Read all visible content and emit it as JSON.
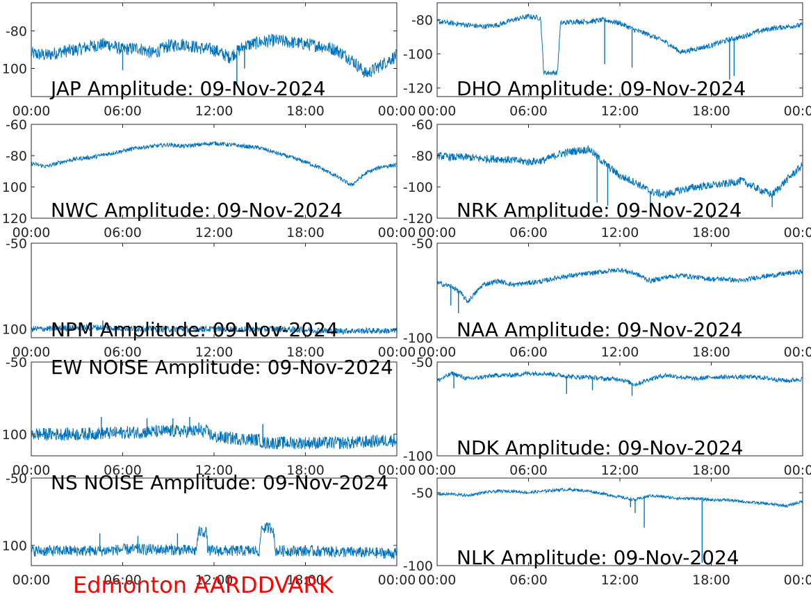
{
  "figure": {
    "footer": "Edmonton AARDDVARK",
    "footer_color": "#ff0000",
    "line_color": "#0072bd"
  },
  "chart_data": [
    {
      "type": "line",
      "title": "JAP Amplitude: 09-Nov-2024",
      "x_ticks": [
        "00:00",
        "06:00",
        "12:00",
        "18:00",
        "00:00"
      ],
      "xlim_hours": [
        0,
        24
      ],
      "y_ticks": [
        -80,
        -100
      ],
      "y_tick_labels": [
        "-80",
        "100"
      ],
      "ylim": [
        -115,
        -65
      ],
      "x": [
        0,
        1,
        2,
        3,
        4,
        5,
        6,
        7,
        8,
        9,
        10,
        11,
        12,
        13,
        14,
        15,
        16,
        17,
        18,
        19,
        20,
        21,
        22,
        23,
        24
      ],
      "values": [
        -92,
        -93,
        -91,
        -90,
        -88,
        -87,
        -90,
        -89,
        -92,
        -88,
        -87,
        -89,
        -90,
        -94,
        -88,
        -86,
        -85,
        -86,
        -87,
        -88,
        -90,
        -95,
        -103,
        -98,
        -93
      ],
      "noise": 3.5,
      "glitches": [
        [
          6.0,
          -101
        ],
        [
          13.0,
          -97
        ],
        [
          13.5,
          -108
        ],
        [
          14.0,
          -100
        ]
      ]
    },
    {
      "type": "line",
      "title": "DHO Amplitude: 09-Nov-2024",
      "x_ticks": [
        "00:00",
        "06:00",
        "12:00",
        "18:00",
        "00:00"
      ],
      "xlim_hours": [
        0,
        24
      ],
      "y_ticks": [
        -80,
        -100,
        -120
      ],
      "y_tick_labels": [
        "-80",
        "-100",
        "-120"
      ],
      "ylim": [
        -125,
        -70
      ],
      "x": [
        0,
        1,
        2,
        3,
        4,
        5,
        6,
        6.8,
        7.0,
        7.9,
        8.1,
        9,
        10,
        11,
        12,
        13,
        14,
        15,
        16,
        17,
        18,
        19,
        20,
        21,
        22,
        23,
        24
      ],
      "values": [
        -81,
        -82,
        -83,
        -84,
        -83,
        -80,
        -78,
        -79,
        -111,
        -111,
        -82,
        -81,
        -81,
        -80,
        -82,
        -86,
        -89,
        -93,
        -99,
        -97,
        -95,
        -92,
        -90,
        -87,
        -85,
        -84,
        -83
      ],
      "noise": 1.5,
      "glitches": [
        [
          11.0,
          -106
        ],
        [
          12.8,
          -108
        ],
        [
          19.2,
          -115
        ],
        [
          19.5,
          -113
        ]
      ]
    },
    {
      "type": "line",
      "title": "NWC Amplitude: 09-Nov-2024",
      "x_ticks": [
        "00:00",
        "06:00",
        "12:00",
        "18:00",
        "00:00"
      ],
      "xlim_hours": [
        0,
        24
      ],
      "y_ticks": [
        -60,
        -80,
        -100,
        -120
      ],
      "y_tick_labels": [
        "-60",
        "-80",
        "100",
        "120"
      ],
      "ylim": [
        -120,
        -60
      ],
      "x": [
        0,
        1,
        2,
        3,
        4,
        5,
        6,
        7,
        8,
        9,
        10,
        11,
        12,
        13,
        14,
        15,
        16,
        17,
        18,
        19,
        20,
        21,
        22,
        23,
        24
      ],
      "values": [
        -85,
        -87,
        -84,
        -82,
        -81,
        -79,
        -77,
        -75,
        -74,
        -73,
        -74,
        -73,
        -72,
        -73,
        -74,
        -75,
        -78,
        -81,
        -84,
        -88,
        -93,
        -99,
        -91,
        -87,
        -86
      ],
      "noise": 1.3,
      "glitches": []
    },
    {
      "type": "line",
      "title": "NRK Amplitude: 09-Nov-2024",
      "x_ticks": [
        "00:00",
        "06:00",
        "12:00",
        "18:00",
        "00:00"
      ],
      "xlim_hours": [
        0,
        24
      ],
      "y_ticks": [
        -60,
        -80,
        -100,
        -120
      ],
      "y_tick_labels": [
        "-60",
        "-80",
        "-100",
        "-120"
      ],
      "ylim": [
        -120,
        -60
      ],
      "x": [
        0,
        1,
        2,
        3,
        4,
        5,
        6,
        7,
        8,
        9,
        10,
        11,
        12,
        13,
        14,
        15,
        16,
        17,
        18,
        19,
        20,
        21,
        22,
        23,
        24
      ],
      "values": [
        -80,
        -81,
        -81,
        -82,
        -82,
        -83,
        -84,
        -83,
        -79,
        -77,
        -76,
        -85,
        -93,
        -97,
        -103,
        -105,
        -102,
        -100,
        -99,
        -98,
        -96,
        -101,
        -105,
        -95,
        -86
      ],
      "noise": 2.5,
      "glitches": [
        [
          10.5,
          -110
        ],
        [
          11.2,
          -112
        ],
        [
          14.0,
          -115
        ],
        [
          22.0,
          -113
        ]
      ]
    },
    {
      "type": "line",
      "title": "NPM Amplitude: 09-Nov-2024",
      "x_ticks": [
        "00:00",
        "06:00",
        "12:00",
        "18:00",
        "00:00"
      ],
      "xlim_hours": [
        0,
        24
      ],
      "y_ticks": [
        -50,
        -100
      ],
      "y_tick_labels": [
        "-50",
        "100"
      ],
      "ylim": [
        -105,
        -50
      ],
      "x": [
        0,
        4,
        8,
        12,
        16,
        20,
        24
      ],
      "values": [
        -100,
        -99,
        -100,
        -100,
        -100,
        -101,
        -101
      ],
      "noise": 1.8,
      "glitches": [
        [
          4.7,
          -95
        ]
      ]
    },
    {
      "type": "line",
      "title": "NAA Amplitude: 09-Nov-2024",
      "x_ticks": [
        "00:00",
        "06:00",
        "12:00",
        "18:00",
        "00:00"
      ],
      "xlim_hours": [
        0,
        24
      ],
      "y_ticks": [
        -50,
        -100
      ],
      "y_tick_labels": [
        "-50",
        "-100"
      ],
      "ylim": [
        -100,
        -50
      ],
      "x": [
        0,
        1,
        1.5,
        2,
        3,
        4,
        5,
        6,
        7,
        8,
        9,
        10,
        11,
        12,
        13,
        14,
        15,
        16,
        17,
        18,
        19,
        20,
        21,
        22,
        23,
        24
      ],
      "values": [
        -71,
        -73,
        -76,
        -81,
        -72,
        -70,
        -72,
        -71,
        -70,
        -68,
        -67,
        -66,
        -65,
        -64,
        -66,
        -70,
        -68,
        -67,
        -68,
        -69,
        -69,
        -70,
        -68,
        -67,
        -66,
        -65
      ],
      "noise": 1.3,
      "glitches": [
        [
          1.4,
          -87
        ],
        [
          0.9,
          -83
        ]
      ]
    },
    {
      "type": "line",
      "title": "EW NOISE Amplitude: 09-Nov-2024",
      "x_ticks": [
        "00:00",
        "06:00",
        "12:00",
        "18:00",
        "00:00"
      ],
      "xlim_hours": [
        0,
        24
      ],
      "y_ticks": [
        -50,
        -100
      ],
      "y_tick_labels": [
        "-50",
        "100"
      ],
      "ylim": [
        -115,
        -50
      ],
      "x": [
        0,
        3,
        6,
        9,
        11.5,
        12,
        15,
        15.2,
        18,
        21,
        24
      ],
      "values": [
        -100,
        -100,
        -99,
        -98,
        -98,
        -102,
        -104,
        -106,
        -106,
        -106,
        -104
      ],
      "noise": 4.5,
      "glitches": [
        [
          4.6,
          -88
        ],
        [
          7.6,
          -89
        ],
        [
          9.3,
          -89
        ],
        [
          10.4,
          -88
        ],
        [
          11.0,
          -92
        ],
        [
          15.2,
          -93
        ]
      ]
    },
    {
      "type": "line",
      "title": "NDK Amplitude: 09-Nov-2024",
      "x_ticks": [
        "00:00",
        "06:00",
        "12:00",
        "18:00",
        "00:00"
      ],
      "xlim_hours": [
        0,
        24
      ],
      "y_ticks": [
        -50,
        -100
      ],
      "y_tick_labels": [
        "-50",
        "-100"
      ],
      "ylim": [
        -100,
        -50
      ],
      "x": [
        0,
        1,
        2,
        3,
        4,
        5,
        6,
        7,
        8,
        9,
        10,
        11,
        12,
        13,
        14,
        15,
        16,
        17,
        18,
        19,
        20,
        21,
        22,
        23,
        24
      ],
      "values": [
        -60,
        -56,
        -59,
        -58,
        -57,
        -57,
        -56,
        -56,
        -57,
        -58,
        -58,
        -59,
        -59,
        -62,
        -59,
        -57,
        -58,
        -59,
        -58,
        -58,
        -58,
        -58,
        -59,
        -60,
        -59
      ],
      "noise": 1.2,
      "glitches": [
        [
          1.1,
          -64
        ],
        [
          8.5,
          -67
        ],
        [
          12.8,
          -68
        ],
        [
          10.2,
          -65
        ]
      ]
    },
    {
      "type": "line",
      "title": "NS NOISE Amplitude: 09-Nov-2024",
      "x_ticks": [
        "00:00",
        "06:00",
        "12:00",
        "18:00",
        "00:00"
      ],
      "xlim_hours": [
        0,
        24
      ],
      "y_ticks": [
        -50,
        -100
      ],
      "y_tick_labels": [
        "-50",
        "100"
      ],
      "ylim": [
        -115,
        -50
      ],
      "x": [
        0,
        3,
        4.5,
        4.6,
        6,
        9,
        10.8,
        11,
        11.5,
        11.6,
        13,
        15,
        15.1,
        15.9,
        16,
        18,
        21,
        24
      ],
      "values": [
        -104,
        -104,
        -104,
        -104,
        -103,
        -103,
        -104,
        -90,
        -90,
        -104,
        -104,
        -104,
        -87,
        -87,
        -104,
        -104,
        -105,
        -106
      ],
      "noise": 4.2,
      "glitches": [
        [
          4.5,
          -91
        ],
        [
          7.0,
          -93
        ],
        [
          9.6,
          -91
        ],
        [
          11.0,
          -88
        ]
      ]
    },
    {
      "type": "line",
      "title": "NLK Amplitude: 09-Nov-2024",
      "x_ticks": [
        "00:00",
        "06:00",
        "12:00",
        "18:00",
        "00:00"
      ],
      "xlim_hours": [
        0,
        24
      ],
      "y_ticks": [
        -50,
        -100
      ],
      "y_tick_labels": [
        "-50",
        "-100"
      ],
      "ylim": [
        -100,
        -40
      ],
      "x": [
        0,
        1,
        2,
        3,
        4,
        5,
        6,
        7,
        8,
        9,
        10,
        11,
        12,
        13,
        14,
        15,
        16,
        17,
        18,
        19,
        20,
        21,
        22,
        23,
        24
      ],
      "values": [
        -51,
        -51,
        -52,
        -50,
        -49,
        -49,
        -50,
        -49,
        -48,
        -48,
        -49,
        -51,
        -53,
        -55,
        -52,
        -53,
        -54,
        -54,
        -55,
        -55,
        -56,
        -57,
        -58,
        -59,
        -56
      ],
      "noise": 1.0,
      "glitches": [
        [
          13.6,
          -74
        ],
        [
          17.4,
          -98
        ],
        [
          13.0,
          -64
        ],
        [
          12.7,
          -60
        ]
      ]
    }
  ]
}
